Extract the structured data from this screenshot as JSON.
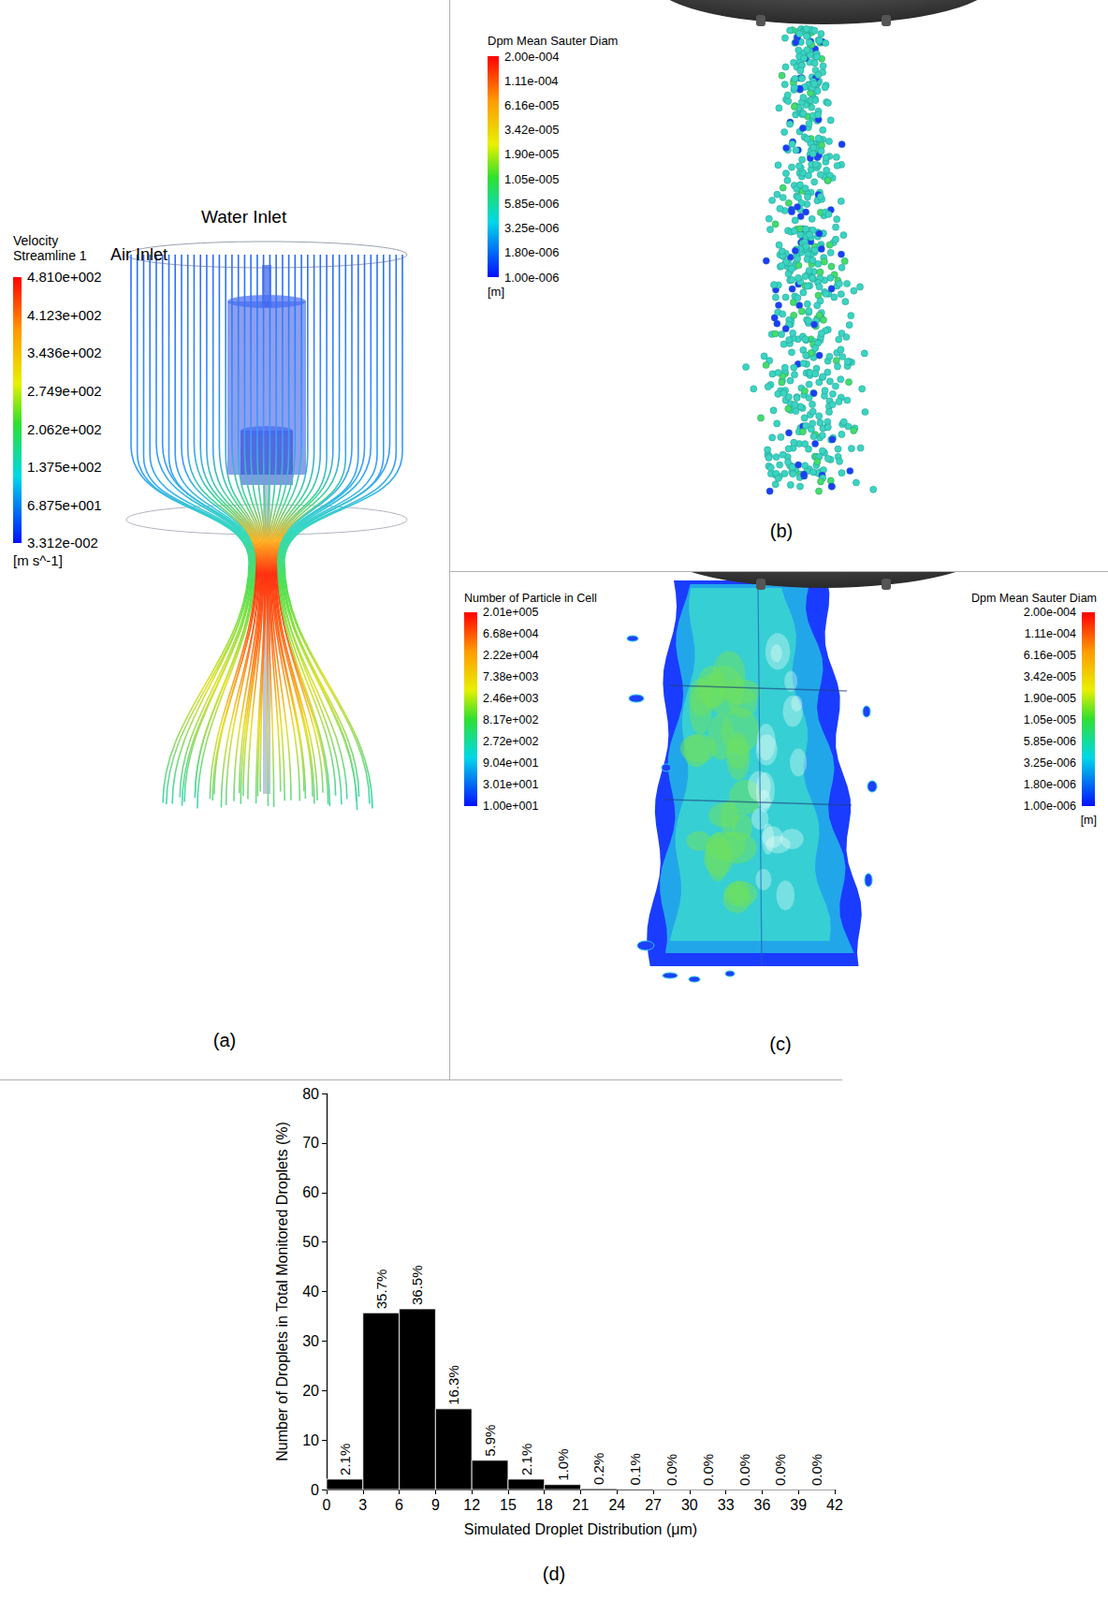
{
  "panels": {
    "a": {
      "letter": "(a)",
      "annotations": [
        "Water Inlet",
        "Air Inlet"
      ],
      "colorbar": {
        "title": [
          "Velocity",
          "Streamline 1"
        ],
        "labels": [
          "4.810e+002",
          "4.123e+002",
          "3.436e+002",
          "2.749e+002",
          "2.062e+002",
          "1.375e+002",
          "6.875e+001",
          "3.312e-002"
        ],
        "unit": "[m s^-1]"
      }
    },
    "b": {
      "letter": "(b)",
      "colorbar": {
        "title": "Dpm Mean Sauter Diam",
        "labels": [
          "2.00e-004",
          "1.11e-004",
          "6.16e-005",
          "3.42e-005",
          "1.90e-005",
          "1.05e-005",
          "5.85e-006",
          "3.25e-006",
          "1.80e-006",
          "1.00e-006"
        ],
        "unit": "[m]"
      }
    },
    "c": {
      "letter": "(c)",
      "colorbars": [
        {
          "title": "Number of Particle in Cell",
          "labels": [
            "2.01e+005",
            "6.68e+004",
            "2.22e+004",
            "7.38e+003",
            "2.46e+003",
            "8.17e+002",
            "2.72e+002",
            "9.04e+001",
            "3.01e+001",
            "1.00e+001"
          ]
        },
        {
          "title": "Dpm Mean Sauter Diam",
          "labels": [
            "2.00e-004",
            "1.11e-004",
            "6.16e-005",
            "3.42e-005",
            "1.90e-005",
            "1.05e-005",
            "5.85e-006",
            "3.25e-006",
            "1.80e-006",
            "1.00e-006"
          ],
          "unit": "[m]"
        }
      ]
    },
    "d": {
      "letter": "(d)"
    }
  },
  "chart_data": {
    "type": "histogram",
    "x_label": "Simulated Droplet Distribution (μm)",
    "y_label": "Number of Droplets in Total Monitored Droplets (%)",
    "bins": [
      0,
      3,
      6,
      9,
      12,
      15,
      18,
      21,
      24,
      27,
      30,
      33,
      36,
      39,
      42
    ],
    "values": [
      2.1,
      35.7,
      36.5,
      16.3,
      5.9,
      2.1,
      1.0,
      0.2,
      0.1,
      0.0,
      0.0,
      0.0,
      0.0,
      0.0
    ],
    "value_labels": [
      "2.1%",
      "35.7%",
      "36.5%",
      "16.3%",
      "5.9%",
      "2.1%",
      "1.0%",
      "0.2%",
      "0.1%",
      "0.0%",
      "0.0%",
      "0.0%",
      "0.0%",
      "0.0%"
    ],
    "data_labels": true,
    "color": "#000000",
    "xlim": [
      0,
      42
    ],
    "xticks": [
      0,
      3,
      6,
      9,
      12,
      15,
      18,
      21,
      24,
      27,
      30,
      33,
      36,
      39,
      42
    ],
    "ylim": [
      0,
      80
    ],
    "yticks": [
      0,
      10,
      20,
      30,
      40,
      50,
      60,
      70,
      80
    ],
    "grid": false
  }
}
